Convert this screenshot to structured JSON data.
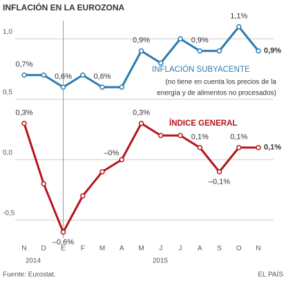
{
  "chart_data": {
    "type": "line",
    "title": "INFLACIÓN EN LA EUROZONA",
    "categories": [
      "N",
      "D",
      "E",
      "F",
      "M",
      "A",
      "M",
      "J",
      "J",
      "A",
      "S",
      "O",
      "N"
    ],
    "years": [
      "2014",
      "2015"
    ],
    "series": [
      {
        "name": "INFLACIÓN SUBYACENTE",
        "color": "#2a7ab0",
        "values": [
          0.7,
          0.7,
          0.6,
          0.7,
          0.6,
          0.6,
          0.9,
          0.8,
          1.0,
          0.9,
          0.9,
          1.1,
          0.9
        ],
        "value_labels": [
          "0,7%",
          null,
          "0,6%",
          null,
          "0,6%",
          null,
          "0,9%",
          null,
          null,
          "0,9%",
          null,
          "1,1%",
          "0,9%"
        ]
      },
      {
        "name": "ÍNDICE GENERAL",
        "color": "#b5121b",
        "values": [
          0.3,
          -0.2,
          -0.6,
          -0.3,
          -0.1,
          0.0,
          0.3,
          0.2,
          0.2,
          0.1,
          -0.1,
          0.1,
          0.1
        ],
        "value_labels": [
          "0,3%",
          null,
          "–0,6%",
          null,
          null,
          "–0%",
          "0,3%",
          null,
          null,
          "0,1%",
          "–0,1%",
          "0,1%",
          "0,1%"
        ]
      }
    ],
    "subtitle_notes": [
      "(no tiene en cuenta los precios de la",
      "energía y de alimentos no procesados)"
    ],
    "ylim": [
      -0.65,
      1.15
    ],
    "yticks": [
      {
        "value": -0.5,
        "label": "-0,5"
      },
      {
        "value": 0,
        "label": "0,0"
      },
      {
        "value": 0.5,
        "label": "0,5"
      },
      {
        "value": 1,
        "label": "1,0"
      }
    ],
    "grid": true,
    "source": "Fuente: Eurostat.",
    "credit": "EL PAÍS"
  }
}
